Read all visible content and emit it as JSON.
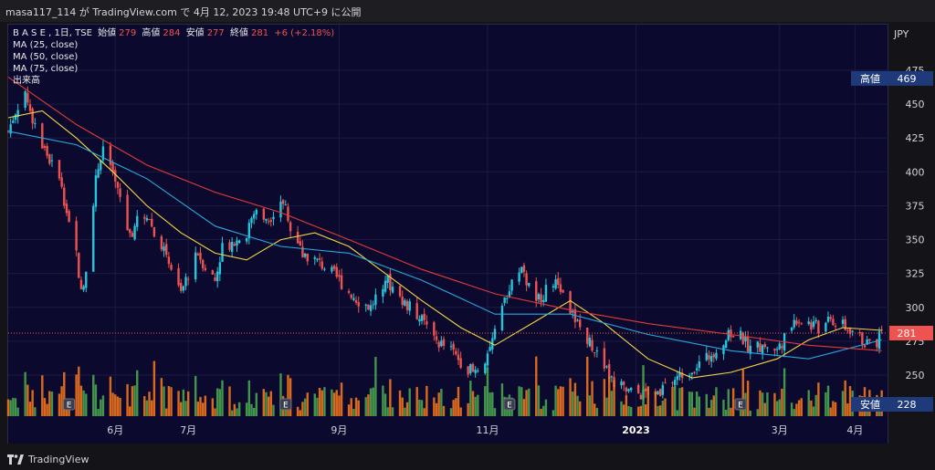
{
  "publish_line": "masa117_114 が TradingView.com で 4月 12, 2023 19:48 UTC+9 に公開",
  "legend": {
    "symbol": "B A S E , 1日, TSE",
    "open_label": "始値",
    "open": "279",
    "high_label": "高値",
    "high": "284",
    "low_label": "安値",
    "low": "277",
    "close_label": "終値",
    "close": "281",
    "change": "+6 (+2.18%)",
    "ma25": "MA (25, close)",
    "ma50": "MA (50, close)",
    "ma75": "MA (75, close)",
    "volume": "出来高"
  },
  "currency": "JPY",
  "brand": "TradingView",
  "colors": {
    "background": "#0b0a2e",
    "up": "#26c6da",
    "down": "#ef5350",
    "ma25": "#f5d742",
    "ma50": "#26a9e0",
    "ma75": "#e53935",
    "vol_up": "#4caf50",
    "vol_down": "#ff7a1a",
    "label_bg": "#1f3a7a"
  },
  "chart_data": {
    "type": "candlestick",
    "ylim": [
      228,
      475
    ],
    "y_ticks": [
      250,
      275,
      300,
      325,
      350,
      375,
      400,
      425,
      450,
      475
    ],
    "x_tick_labels": [
      "6月",
      "7月",
      "9月",
      "11月",
      "2023",
      "3月",
      "4月"
    ],
    "x_tick_dates": [
      "2022-06-01",
      "2022-07-01",
      "2022-09-01",
      "2022-11-01",
      "2023-01-01",
      "2023-03-01",
      "2023-04-01"
    ],
    "x_range": [
      "2022-04-18",
      "2023-04-14"
    ],
    "price_labels": [
      {
        "name": "高値",
        "value": 469
      },
      {
        "name": "281",
        "value": 281
      },
      {
        "name": "安値",
        "value": 228
      }
    ],
    "earnings_marker_label": "E",
    "earnings_dates": [
      "2022-05-13",
      "2022-08-10",
      "2022-11-10",
      "2023-02-13"
    ],
    "close_series": [
      [
        "2022-04-18",
        430
      ],
      [
        "2022-04-21",
        445
      ],
      [
        "2022-04-25",
        460
      ],
      [
        "2022-04-28",
        440
      ],
      [
        "2022-05-02",
        420
      ],
      [
        "2022-05-06",
        405
      ],
      [
        "2022-05-10",
        390
      ],
      [
        "2022-05-13",
        360
      ],
      [
        "2022-05-16",
        340
      ],
      [
        "2022-05-18",
        310
      ],
      [
        "2022-05-20",
        330
      ],
      [
        "2022-05-24",
        395
      ],
      [
        "2022-05-27",
        420
      ],
      [
        "2022-05-31",
        395
      ],
      [
        "2022-06-03",
        380
      ],
      [
        "2022-06-07",
        350
      ],
      [
        "2022-06-10",
        365
      ],
      [
        "2022-06-14",
        370
      ],
      [
        "2022-06-17",
        355
      ],
      [
        "2022-06-21",
        345
      ],
      [
        "2022-06-24",
        330
      ],
      [
        "2022-06-28",
        310
      ],
      [
        "2022-07-01",
        325
      ],
      [
        "2022-07-05",
        340
      ],
      [
        "2022-07-08",
        330
      ],
      [
        "2022-07-12",
        320
      ],
      [
        "2022-07-15",
        345
      ],
      [
        "2022-07-20",
        348
      ],
      [
        "2022-07-25",
        355
      ],
      [
        "2022-07-29",
        372
      ],
      [
        "2022-08-03",
        365
      ],
      [
        "2022-08-08",
        380
      ],
      [
        "2022-08-10",
        375
      ],
      [
        "2022-08-12",
        355
      ],
      [
        "2022-08-17",
        340
      ],
      [
        "2022-08-22",
        335
      ],
      [
        "2022-08-26",
        330
      ],
      [
        "2022-08-31",
        322
      ],
      [
        "2022-09-05",
        312
      ],
      [
        "2022-09-09",
        305
      ],
      [
        "2022-09-14",
        300
      ],
      [
        "2022-09-20",
        322
      ],
      [
        "2022-09-26",
        305
      ],
      [
        "2022-09-30",
        300
      ],
      [
        "2022-10-05",
        290
      ],
      [
        "2022-10-11",
        275
      ],
      [
        "2022-10-17",
        268
      ],
      [
        "2022-10-21",
        260
      ],
      [
        "2022-10-26",
        252
      ],
      [
        "2022-10-31",
        262
      ],
      [
        "2022-11-04",
        280
      ],
      [
        "2022-11-10",
        315
      ],
      [
        "2022-11-15",
        326
      ],
      [
        "2022-11-21",
        305
      ],
      [
        "2022-11-25",
        312
      ],
      [
        "2022-11-30",
        318
      ],
      [
        "2022-12-05",
        298
      ],
      [
        "2022-12-09",
        285
      ],
      [
        "2022-12-14",
        272
      ],
      [
        "2022-12-19",
        255
      ],
      [
        "2022-12-23",
        245
      ],
      [
        "2022-12-28",
        238
      ],
      [
        "2023-01-06",
        235
      ],
      [
        "2023-01-12",
        240
      ],
      [
        "2023-01-18",
        248
      ],
      [
        "2023-01-24",
        255
      ],
      [
        "2023-01-30",
        262
      ],
      [
        "2023-02-03",
        270
      ],
      [
        "2023-02-09",
        280
      ],
      [
        "2023-02-13",
        278
      ],
      [
        "2023-02-17",
        270
      ],
      [
        "2023-02-22",
        272
      ],
      [
        "2023-02-28",
        268
      ],
      [
        "2023-03-03",
        278
      ],
      [
        "2023-03-08",
        292
      ],
      [
        "2023-03-13",
        288
      ],
      [
        "2023-03-17",
        285
      ],
      [
        "2023-03-22",
        290
      ],
      [
        "2023-03-27",
        286
      ],
      [
        "2023-03-31",
        283
      ],
      [
        "2023-04-05",
        274
      ],
      [
        "2023-04-10",
        275
      ],
      [
        "2023-04-12",
        281
      ]
    ],
    "ma25_series": [
      [
        "2022-04-18",
        440
      ],
      [
        "2022-05-02",
        445
      ],
      [
        "2022-05-16",
        425
      ],
      [
        "2022-05-31",
        400
      ],
      [
        "2022-06-14",
        375
      ],
      [
        "2022-06-28",
        355
      ],
      [
        "2022-07-12",
        340
      ],
      [
        "2022-07-25",
        335
      ],
      [
        "2022-08-08",
        350
      ],
      [
        "2022-08-22",
        355
      ],
      [
        "2022-09-05",
        345
      ],
      [
        "2022-09-20",
        325
      ],
      [
        "2022-10-05",
        305
      ],
      [
        "2022-10-21",
        285
      ],
      [
        "2022-11-04",
        272
      ],
      [
        "2022-11-21",
        290
      ],
      [
        "2022-12-05",
        305
      ],
      [
        "2022-12-19",
        288
      ],
      [
        "2023-01-06",
        262
      ],
      [
        "2023-01-24",
        248
      ],
      [
        "2023-02-09",
        252
      ],
      [
        "2023-02-28",
        262
      ],
      [
        "2023-03-13",
        276
      ],
      [
        "2023-03-27",
        285
      ],
      [
        "2023-04-12",
        283
      ]
    ],
    "ma50_series": [
      [
        "2022-04-18",
        430
      ],
      [
        "2022-05-16",
        420
      ],
      [
        "2022-06-14",
        395
      ],
      [
        "2022-07-12",
        360
      ],
      [
        "2022-08-08",
        345
      ],
      [
        "2022-09-05",
        340
      ],
      [
        "2022-10-05",
        320
      ],
      [
        "2022-11-04",
        295
      ],
      [
        "2022-12-05",
        295
      ],
      [
        "2023-01-06",
        280
      ],
      [
        "2023-02-09",
        268
      ],
      [
        "2023-03-13",
        262
      ],
      [
        "2023-04-12",
        276
      ]
    ],
    "ma75_series": [
      [
        "2022-04-18",
        470
      ],
      [
        "2022-05-16",
        435
      ],
      [
        "2022-06-14",
        405
      ],
      [
        "2022-07-12",
        385
      ],
      [
        "2022-08-08",
        370
      ],
      [
        "2022-09-05",
        350
      ],
      [
        "2022-10-05",
        328
      ],
      [
        "2022-11-04",
        310
      ],
      [
        "2022-12-05",
        298
      ],
      [
        "2023-01-06",
        288
      ],
      [
        "2023-02-09",
        280
      ],
      [
        "2023-03-13",
        272
      ],
      [
        "2023-04-12",
        268
      ]
    ]
  }
}
